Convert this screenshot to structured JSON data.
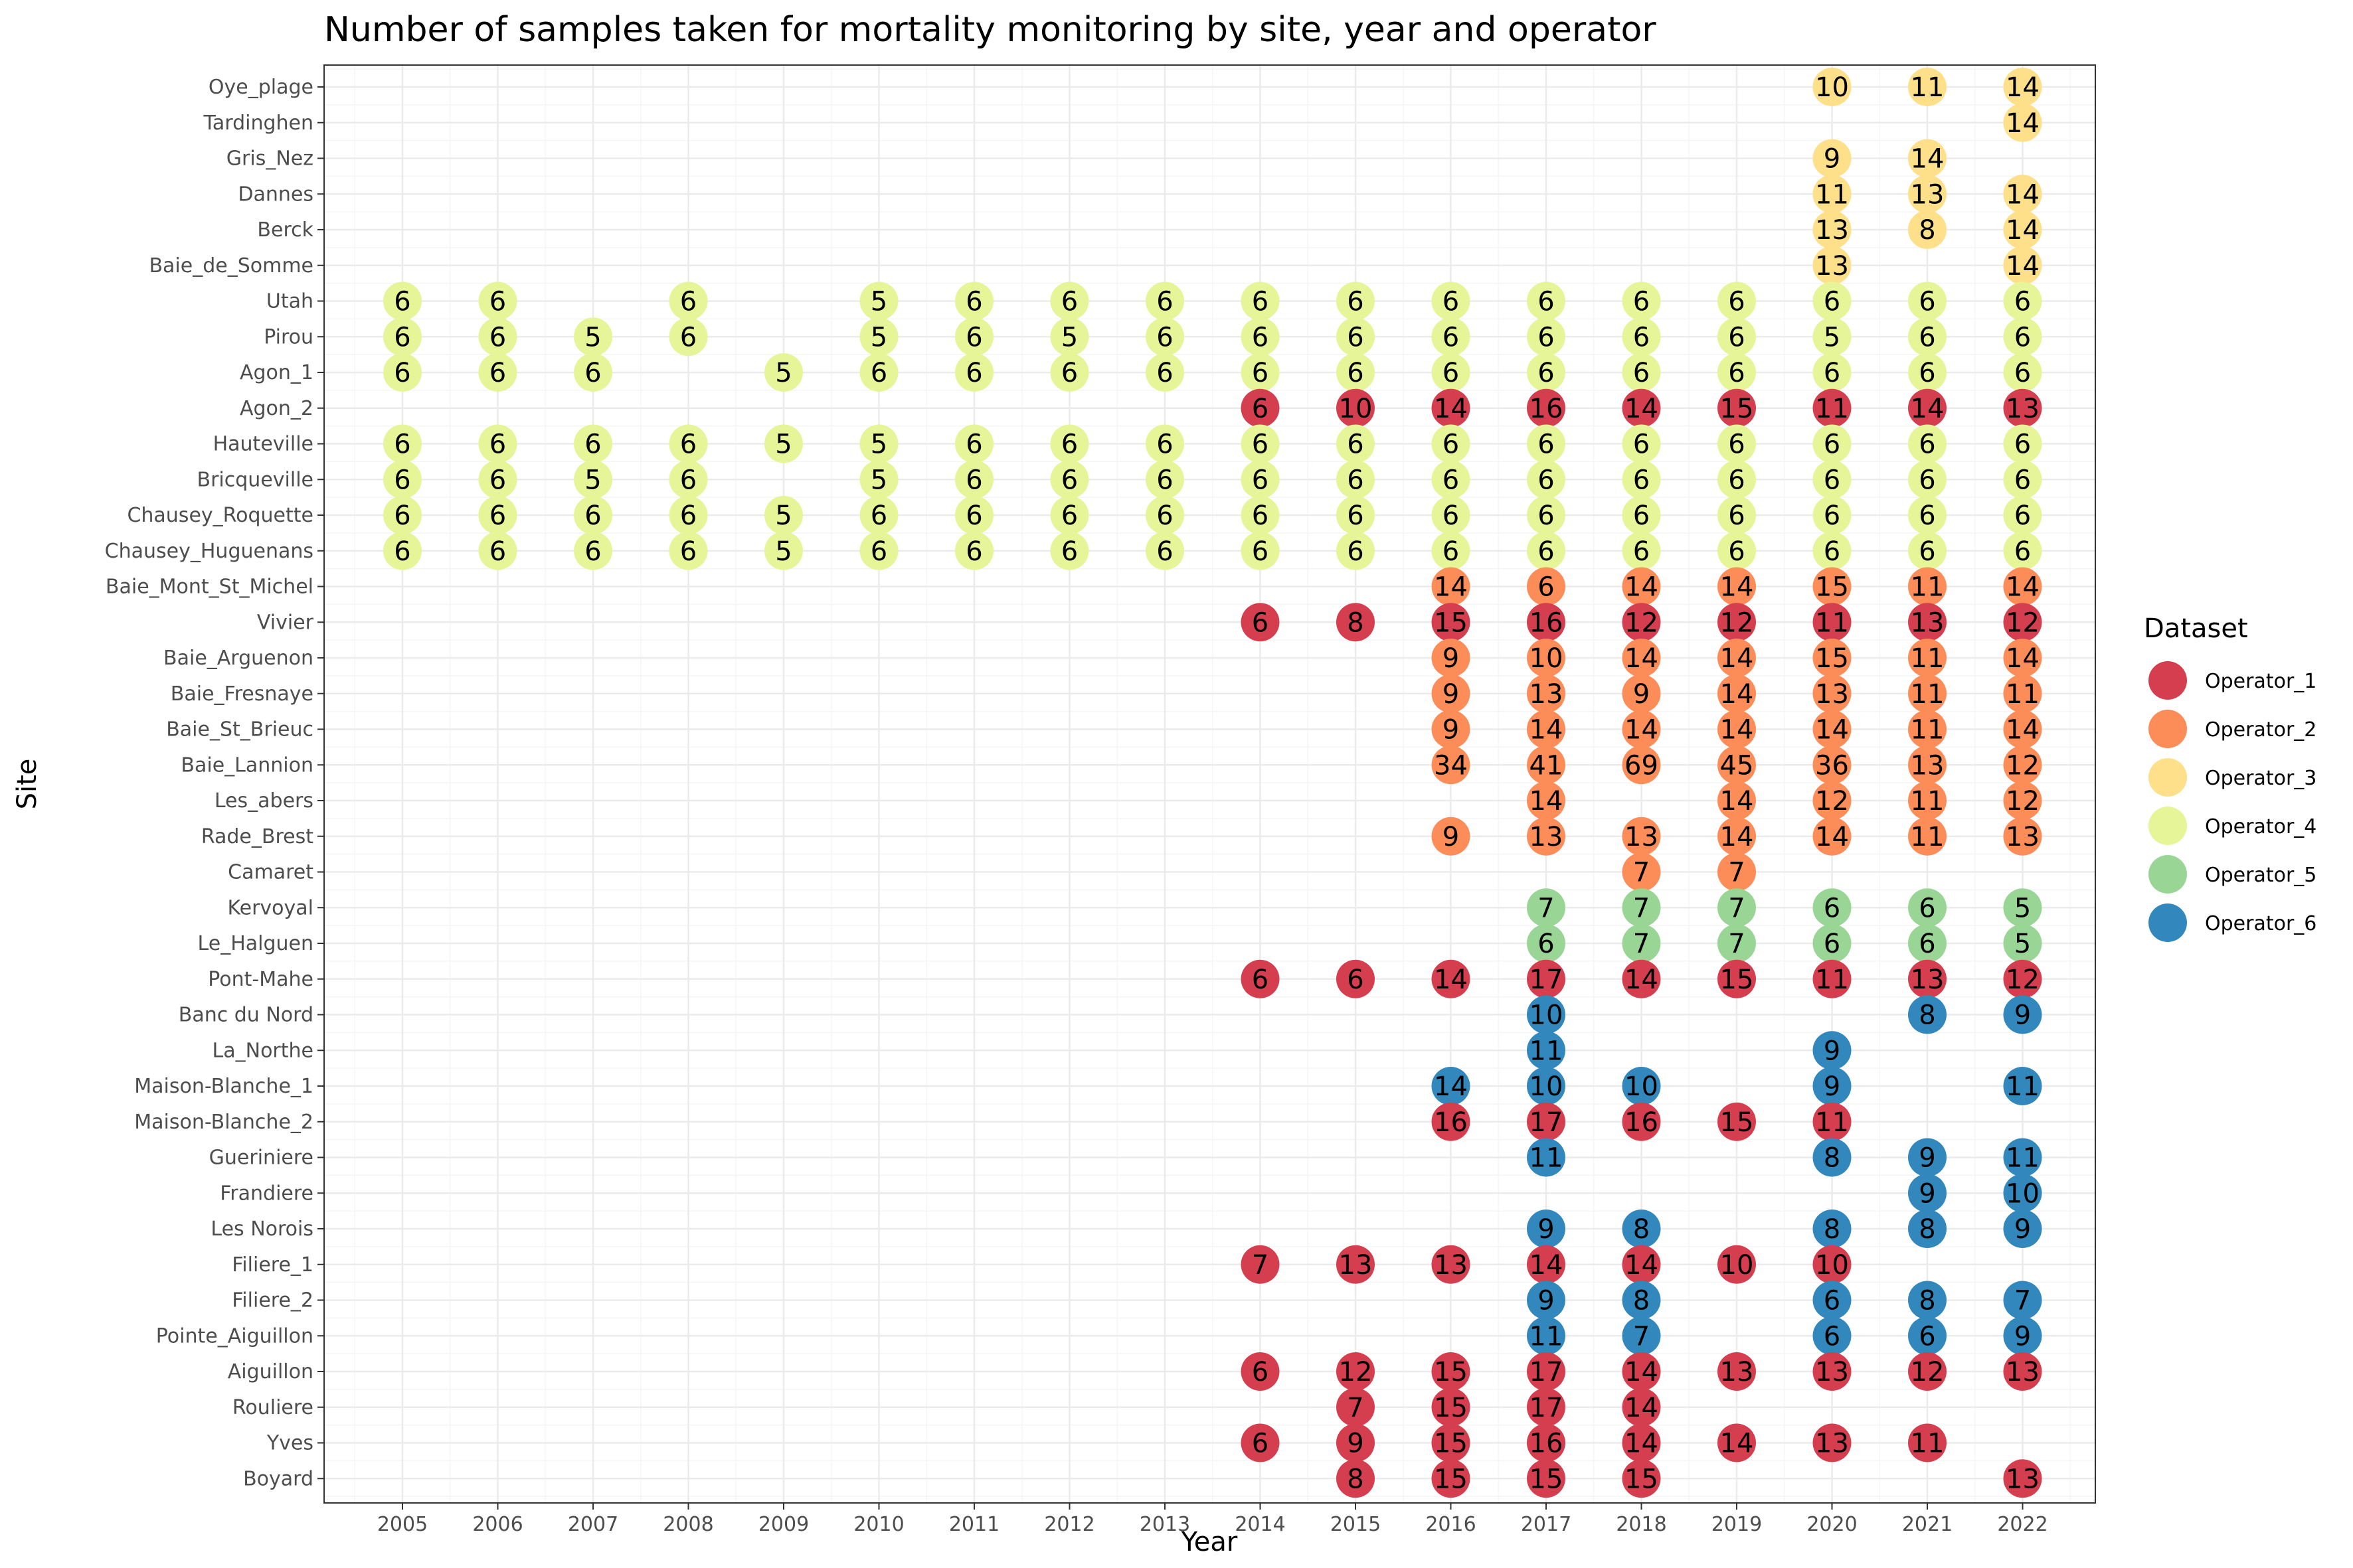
{
  "chart_data": {
    "type": "scatter",
    "title": "Number of samples taken for mortality monitoring by site, year and operator",
    "xlabel": "Year",
    "ylabel": "Site",
    "grid": true,
    "legend_position": "right",
    "legend_title": "Dataset",
    "years": [
      2005,
      2006,
      2007,
      2008,
      2009,
      2010,
      2011,
      2012,
      2013,
      2014,
      2015,
      2016,
      2017,
      2018,
      2019,
      2020,
      2021,
      2022
    ],
    "sites": [
      "Oye_plage",
      "Tardinghen",
      "Gris_Nez",
      "Dannes",
      "Berck",
      "Baie_de_Somme",
      "Utah",
      "Pirou",
      "Agon_1",
      "Agon_2",
      "Hauteville",
      "Bricqueville",
      "Chausey_Roquette",
      "Chausey_Huguenans",
      "Baie_Mont_St_Michel",
      "Vivier",
      "Baie_Arguenon",
      "Baie_Fresnaye",
      "Baie_St_Brieuc",
      "Baie_Lannion",
      "Les_abers",
      "Rade_Brest",
      "Camaret",
      "Kervoyal",
      "Le_Halguen",
      "Pont-Mahe",
      "Banc du Nord",
      "La_Northe",
      "Maison-Blanche_1",
      "Maison-Blanche_2",
      "Gueriniere",
      "Frandiere",
      "Les Norois",
      "Filiere_1",
      "Filiere_2",
      "Pointe_Aiguillon",
      "Aiguillon",
      "Rouliere",
      "Yves",
      "Boyard"
    ],
    "series": [
      {
        "name": "Operator_1",
        "color": "#d53e4f"
      },
      {
        "name": "Operator_2",
        "color": "#fc8d59"
      },
      {
        "name": "Operator_3",
        "color": "#fee08b"
      },
      {
        "name": "Operator_4",
        "color": "#e6f598"
      },
      {
        "name": "Operator_5",
        "color": "#99d594"
      },
      {
        "name": "Operator_6",
        "color": "#3288bd"
      }
    ],
    "points": [
      {
        "site": "Oye_plage",
        "op": "Operator_3",
        "values": {
          "2020": 10,
          "2021": 11,
          "2022": 14
        }
      },
      {
        "site": "Tardinghen",
        "op": "Operator_3",
        "values": {
          "2022": 14
        }
      },
      {
        "site": "Gris_Nez",
        "op": "Operator_3",
        "values": {
          "2020": 9,
          "2021": 14
        }
      },
      {
        "site": "Dannes",
        "op": "Operator_3",
        "values": {
          "2020": 11,
          "2021": 13,
          "2022": 14
        }
      },
      {
        "site": "Berck",
        "op": "Operator_3",
        "values": {
          "2020": 13,
          "2021": 8,
          "2022": 14
        }
      },
      {
        "site": "Baie_de_Somme",
        "op": "Operator_3",
        "values": {
          "2020": 13,
          "2022": 14
        }
      },
      {
        "site": "Utah",
        "op": "Operator_4",
        "values": {
          "2005": 6,
          "2006": 6,
          "2008": 6,
          "2010": 5,
          "2011": 6,
          "2012": 6,
          "2013": 6,
          "2014": 6,
          "2015": 6,
          "2016": 6,
          "2017": 6,
          "2018": 6,
          "2019": 6,
          "2020": 6,
          "2021": 6,
          "2022": 6
        }
      },
      {
        "site": "Pirou",
        "op": "Operator_4",
        "values": {
          "2005": 6,
          "2006": 6,
          "2007": 5,
          "2008": 6,
          "2010": 5,
          "2011": 6,
          "2012": 5,
          "2013": 6,
          "2014": 6,
          "2015": 6,
          "2016": 6,
          "2017": 6,
          "2018": 6,
          "2019": 6,
          "2020": 5,
          "2021": 6,
          "2022": 6
        }
      },
      {
        "site": "Agon_1",
        "op": "Operator_4",
        "values": {
          "2005": 6,
          "2006": 6,
          "2007": 6,
          "2009": 5,
          "2010": 6,
          "2011": 6,
          "2012": 6,
          "2013": 6,
          "2014": 6,
          "2015": 6,
          "2016": 6,
          "2017": 6,
          "2018": 6,
          "2019": 6,
          "2020": 6,
          "2021": 6,
          "2022": 6
        }
      },
      {
        "site": "Agon_2",
        "op": "Operator_1",
        "values": {
          "2014": 6,
          "2015": 10,
          "2016": 14,
          "2017": 16,
          "2018": 14,
          "2019": 15,
          "2020": 11,
          "2021": 14,
          "2022": 13
        }
      },
      {
        "site": "Hauteville",
        "op": "Operator_4",
        "values": {
          "2005": 6,
          "2006": 6,
          "2007": 6,
          "2008": 6,
          "2009": 5,
          "2010": 5,
          "2011": 6,
          "2012": 6,
          "2013": 6,
          "2014": 6,
          "2015": 6,
          "2016": 6,
          "2017": 6,
          "2018": 6,
          "2019": 6,
          "2020": 6,
          "2021": 6,
          "2022": 6
        }
      },
      {
        "site": "Bricqueville",
        "op": "Operator_4",
        "values": {
          "2005": 6,
          "2006": 6,
          "2007": 5,
          "2008": 6,
          "2010": 5,
          "2011": 6,
          "2012": 6,
          "2013": 6,
          "2014": 6,
          "2015": 6,
          "2016": 6,
          "2017": 6,
          "2018": 6,
          "2019": 6,
          "2020": 6,
          "2021": 6,
          "2022": 6
        }
      },
      {
        "site": "Chausey_Roquette",
        "op": "Operator_4",
        "values": {
          "2005": 6,
          "2006": 6,
          "2007": 6,
          "2008": 6,
          "2009": 5,
          "2010": 6,
          "2011": 6,
          "2012": 6,
          "2013": 6,
          "2014": 6,
          "2015": 6,
          "2016": 6,
          "2017": 6,
          "2018": 6,
          "2019": 6,
          "2020": 6,
          "2021": 6,
          "2022": 6
        }
      },
      {
        "site": "Chausey_Huguenans",
        "op": "Operator_4",
        "values": {
          "2005": 6,
          "2006": 6,
          "2007": 6,
          "2008": 6,
          "2009": 5,
          "2010": 6,
          "2011": 6,
          "2012": 6,
          "2013": 6,
          "2014": 6,
          "2015": 6,
          "2016": 6,
          "2017": 6,
          "2018": 6,
          "2019": 6,
          "2020": 6,
          "2021": 6,
          "2022": 6
        }
      },
      {
        "site": "Baie_Mont_St_Michel",
        "op": "Operator_2",
        "values": {
          "2016": 14,
          "2017": 6,
          "2018": 14,
          "2019": 14,
          "2020": 15,
          "2021": 11,
          "2022": 14
        }
      },
      {
        "site": "Vivier",
        "op": "Operator_1",
        "values": {
          "2014": 6,
          "2015": 8,
          "2016": 15,
          "2017": 16,
          "2018": 12,
          "2019": 12,
          "2020": 11,
          "2021": 13,
          "2022": 12
        }
      },
      {
        "site": "Baie_Arguenon",
        "op": "Operator_2",
        "values": {
          "2016": 9,
          "2017": 10,
          "2018": 14,
          "2019": 14,
          "2020": 15,
          "2021": 11,
          "2022": 14
        }
      },
      {
        "site": "Baie_Fresnaye",
        "op": "Operator_2",
        "values": {
          "2016": 9,
          "2017": 13,
          "2018": 9,
          "2019": 14,
          "2020": 13,
          "2021": 11,
          "2022": 11
        }
      },
      {
        "site": "Baie_St_Brieuc",
        "op": "Operator_2",
        "values": {
          "2016": 9,
          "2017": 14,
          "2018": 14,
          "2019": 14,
          "2020": 14,
          "2021": 11,
          "2022": 14
        }
      },
      {
        "site": "Baie_Lannion",
        "op": "Operator_2",
        "values": {
          "2016": 34,
          "2017": 41,
          "2018": 69,
          "2019": 45,
          "2020": 36,
          "2021": 13,
          "2022": 12
        }
      },
      {
        "site": "Les_abers",
        "op": "Operator_2",
        "values": {
          "2017": 14,
          "2019": 14,
          "2020": 12,
          "2021": 11,
          "2022": 12
        }
      },
      {
        "site": "Rade_Brest",
        "op": "Operator_2",
        "values": {
          "2016": 9,
          "2017": 13,
          "2018": 13,
          "2019": 14,
          "2020": 14,
          "2021": 11,
          "2022": 13
        }
      },
      {
        "site": "Camaret",
        "op": "Operator_2",
        "values": {
          "2018": 7,
          "2019": 7
        }
      },
      {
        "site": "Kervoyal",
        "op": "Operator_5",
        "values": {
          "2017": 7,
          "2018": 7,
          "2019": 7,
          "2020": 6,
          "2021": 6,
          "2022": 5
        }
      },
      {
        "site": "Le_Halguen",
        "op": "Operator_5",
        "values": {
          "2017": 6,
          "2018": 7,
          "2019": 7,
          "2020": 6,
          "2021": 6,
          "2022": 5
        }
      },
      {
        "site": "Pont-Mahe",
        "op": "Operator_1",
        "values": {
          "2014": 6,
          "2015": 6,
          "2016": 14,
          "2017": 17,
          "2018": 14,
          "2019": 15,
          "2020": 11,
          "2021": 13,
          "2022": 12
        }
      },
      {
        "site": "Banc du Nord",
        "op": "Operator_6",
        "values": {
          "2017": 10,
          "2021": 8,
          "2022": 9
        }
      },
      {
        "site": "La_Northe",
        "op": "Operator_6",
        "values": {
          "2017": 11,
          "2020": 9
        }
      },
      {
        "site": "Maison-Blanche_1",
        "op": "Operator_6",
        "values": {
          "2016": 14,
          "2017": 10,
          "2018": 10,
          "2020": 9,
          "2022": 11
        }
      },
      {
        "site": "Maison-Blanche_2",
        "op": "Operator_1",
        "values": {
          "2016": 16,
          "2017": 17,
          "2018": 16,
          "2019": 15,
          "2020": 11
        }
      },
      {
        "site": "Gueriniere",
        "op": "Operator_6",
        "values": {
          "2017": 11,
          "2020": 8,
          "2021": 9,
          "2022": 11
        }
      },
      {
        "site": "Frandiere",
        "op": "Operator_6",
        "values": {
          "2021": 9,
          "2022": 10
        }
      },
      {
        "site": "Les Norois",
        "op": "Operator_6",
        "values": {
          "2017": 9,
          "2018": 8,
          "2020": 8,
          "2021": 8,
          "2022": 9
        }
      },
      {
        "site": "Filiere_1",
        "op": "Operator_1",
        "values": {
          "2014": 7,
          "2015": 13,
          "2016": 13,
          "2017": 14,
          "2018": 14,
          "2019": 10,
          "2020": 10
        }
      },
      {
        "site": "Filiere_2",
        "op": "Operator_6",
        "values": {
          "2017": 9,
          "2018": 8,
          "2020": 6,
          "2021": 8,
          "2022": 7
        }
      },
      {
        "site": "Pointe_Aiguillon",
        "op": "Operator_6",
        "values": {
          "2017": 11,
          "2018": 7,
          "2020": 6,
          "2021": 6,
          "2022": 9
        }
      },
      {
        "site": "Aiguillon",
        "op": "Operator_1",
        "values": {
          "2014": 6,
          "2015": 12,
          "2016": 15,
          "2017": 17,
          "2018": 14,
          "2019": 13,
          "2020": 13,
          "2021": 12,
          "2022": 13
        }
      },
      {
        "site": "Rouliere",
        "op": "Operator_1",
        "values": {
          "2015": 7,
          "2016": 15,
          "2017": 17,
          "2018": 14
        }
      },
      {
        "site": "Yves",
        "op": "Operator_1",
        "values": {
          "2014": 6,
          "2015": 9,
          "2016": 15,
          "2017": 16,
          "2018": 14,
          "2019": 14,
          "2020": 13,
          "2021": 11
        }
      },
      {
        "site": "Boyard",
        "op": "Operator_1",
        "values": {
          "2015": 8,
          "2016": 15,
          "2017": 15,
          "2018": 15,
          "2022": 13
        }
      }
    ]
  }
}
